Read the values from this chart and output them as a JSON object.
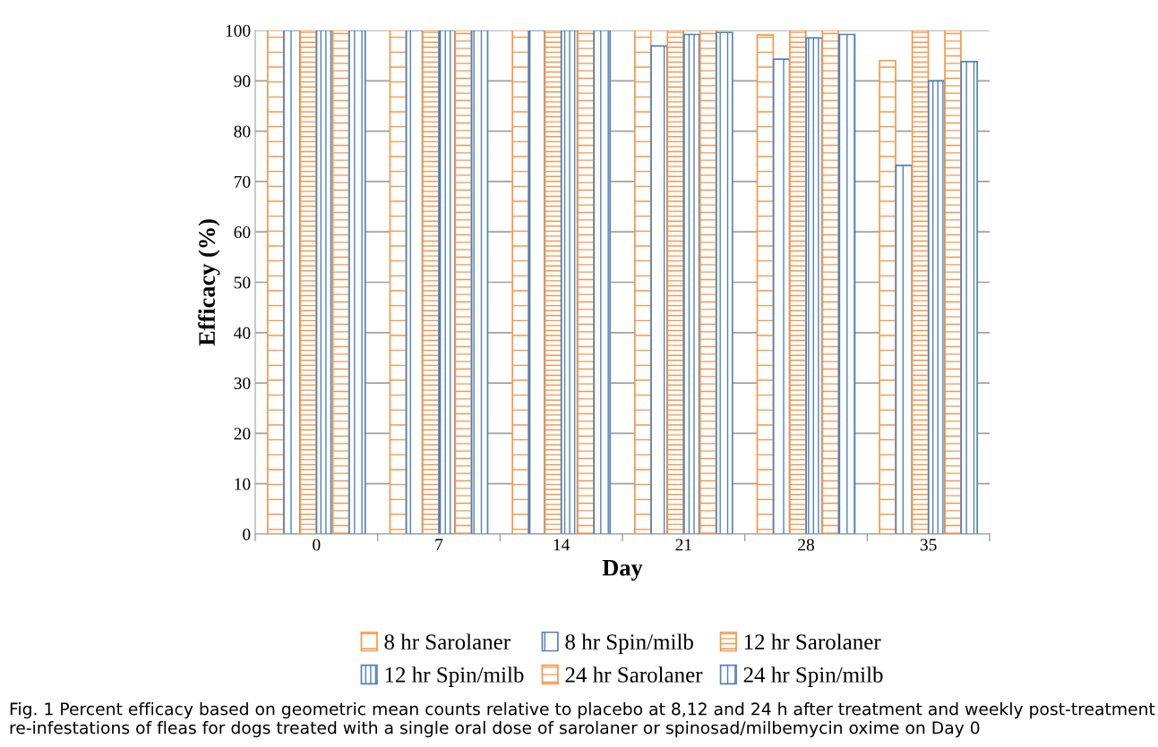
{
  "chart_data": {
    "type": "bar",
    "xlabel": "Day",
    "ylabel": "Efficacy (%)",
    "categories": [
      "0",
      "7",
      "14",
      "21",
      "28",
      "35"
    ],
    "series": [
      {
        "name": "8 hr Sarolaner",
        "color": "#f79646",
        "values": [
          100,
          100,
          100,
          100,
          99.1,
          94.0
        ]
      },
      {
        "name": "8 hr Spin/milb",
        "color": "#4f81bd",
        "values": [
          100,
          100,
          100,
          96.9,
          94.3,
          73.2
        ]
      },
      {
        "name": "12 hr Sarolaner",
        "color": "#f79646",
        "values": [
          100,
          100,
          100,
          100,
          100,
          100
        ]
      },
      {
        "name": "12 hr Spin/milb",
        "color": "#4f81bd",
        "values": [
          100,
          100,
          100,
          99.2,
          98.5,
          90.0
        ]
      },
      {
        "name": "24 hr Sarolaner",
        "color": "#f79646",
        "values": [
          100,
          100,
          100,
          100,
          100,
          100
        ]
      },
      {
        "name": "24 hr Spin/milb",
        "color": "#4f81bd",
        "values": [
          100,
          100,
          100,
          99.6,
          99.2,
          93.8
        ]
      }
    ],
    "ylim": [
      0,
      100
    ],
    "yticks": [
      0,
      10,
      20,
      30,
      40,
      50,
      60,
      70,
      80,
      90,
      100
    ],
    "grid": "y",
    "legend": "bottom",
    "annotations": [
      "Fig. 1 Percent efficacy based on geometric mean counts relative to placebo at 8,12 and 24 h after treatment and weekly post-treatment re-infestations of fleas for dogs treated with a single oral dose of sarolaner or spinosad/milbemycin oxime on Day 0"
    ]
  }
}
